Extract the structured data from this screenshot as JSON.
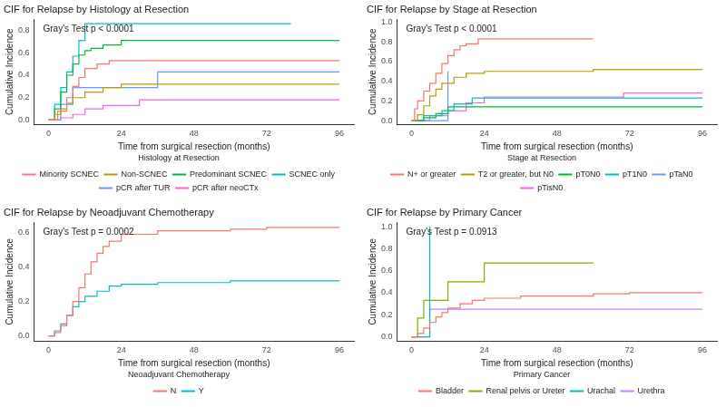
{
  "chart_data": [
    {
      "type": "line",
      "title": "CIF for Relapse by Histology at Resection",
      "annotation": "Gray's Test p < 0.0001",
      "x_label": "Time from surgical resection (months)",
      "y_label": "Cumulative Incidence",
      "legend_title": "Histology at Resection",
      "legend": "bottom",
      "grid": false,
      "line_style": "steps",
      "xlim": [
        -4.8,
        100.8
      ],
      "xticks": [
        0,
        24,
        48,
        72,
        96
      ],
      "ylim": [
        -0.04,
        0.9
      ],
      "yticks": [
        {
          "value": 0,
          "label": "0.0"
        },
        {
          "value": 0.2,
          "label": "0.2"
        },
        {
          "value": 0.4,
          "label": "0.4"
        },
        {
          "value": 0.6,
          "label": "0.6"
        },
        {
          "value": 0.8,
          "label": "0.8"
        }
      ],
      "series": [
        {
          "name": "Minority SCNEC",
          "color": "#F8766D",
          "x": [
            0,
            3,
            6,
            8,
            10,
            12,
            16,
            20,
            96
          ],
          "values": [
            0,
            0.08,
            0.2,
            0.3,
            0.38,
            0.46,
            0.5,
            0.53,
            0.53
          ]
        },
        {
          "name": "Non-SCNEC",
          "color": "#B79F00",
          "x": [
            0,
            2,
            4,
            6,
            8,
            12,
            18,
            24,
            96
          ],
          "values": [
            0,
            0.05,
            0.1,
            0.15,
            0.2,
            0.25,
            0.29,
            0.32,
            0.32
          ]
        },
        {
          "name": "Predominant SCNEC",
          "color": "#00BA38",
          "x": [
            0,
            2,
            4,
            6,
            8,
            10,
            12,
            14,
            18,
            24,
            96
          ],
          "values": [
            0,
            0.1,
            0.25,
            0.4,
            0.5,
            0.58,
            0.62,
            0.64,
            0.67,
            0.71,
            0.71
          ]
        },
        {
          "name": "SCNEC only",
          "color": "#00BFC4",
          "x": [
            0,
            2,
            4,
            6,
            8,
            10,
            12,
            80
          ],
          "values": [
            0,
            0.14,
            0.29,
            0.43,
            0.57,
            0.71,
            0.86,
            0.86
          ]
        },
        {
          "name": "pCR after TUR",
          "color": "#619CFF",
          "x": [
            0,
            4,
            8,
            36,
            96
          ],
          "values": [
            0,
            0.14,
            0.29,
            0.43,
            0.43
          ]
        },
        {
          "name": "pCR after neoCTx",
          "color": "#F564E3",
          "x": [
            0,
            4,
            8,
            12,
            18,
            30,
            96
          ],
          "values": [
            0,
            0.02,
            0.05,
            0.1,
            0.13,
            0.18,
            0.18
          ]
        }
      ]
    },
    {
      "type": "line",
      "title": "CIF for Relapse by Stage at Resection",
      "annotation": "Gray's Test p < 0.0001",
      "x_label": "Time from surgical resection (months)",
      "y_label": "Cumulative Incidence",
      "legend_title": "Stage at Resection",
      "legend": "bottom",
      "grid": false,
      "line_style": "steps",
      "xlim": [
        -4.8,
        100.8
      ],
      "xticks": [
        0,
        24,
        48,
        72,
        96
      ],
      "ylim": [
        -0.04,
        1.03
      ],
      "yticks": [
        {
          "value": 0,
          "label": "0.0"
        },
        {
          "value": 0.2,
          "label": "0.2"
        },
        {
          "value": 0.4,
          "label": "0.4"
        },
        {
          "value": 0.6,
          "label": "0.6"
        },
        {
          "value": 0.8,
          "label": "0.8"
        },
        {
          "value": 1,
          "label": "1.0"
        }
      ],
      "series": [
        {
          "name": "N+ or greater",
          "color": "#F8766D",
          "x": [
            0,
            1,
            2,
            4,
            6,
            8,
            10,
            12,
            14,
            16,
            18,
            22,
            60
          ],
          "values": [
            0,
            0.12,
            0.2,
            0.3,
            0.38,
            0.48,
            0.58,
            0.66,
            0.72,
            0.76,
            0.78,
            0.83,
            0.83
          ]
        },
        {
          "name": "T2 or greater, but N0",
          "color": "#B79F00",
          "x": [
            0,
            2,
            4,
            6,
            8,
            10,
            14,
            18,
            24,
            36,
            60,
            96
          ],
          "values": [
            0,
            0.06,
            0.15,
            0.25,
            0.32,
            0.38,
            0.44,
            0.48,
            0.5,
            0.5,
            0.52,
            0.52
          ]
        },
        {
          "name": "pT0N0",
          "color": "#00BA38",
          "x": [
            0,
            4,
            8,
            12,
            96
          ],
          "values": [
            0,
            0.03,
            0.07,
            0.14,
            0.14
          ]
        },
        {
          "name": "pT1N0",
          "color": "#00BFC4",
          "x": [
            0,
            4,
            10,
            14,
            20,
            96
          ],
          "values": [
            0,
            0.05,
            0.1,
            0.17,
            0.23,
            0.23
          ]
        },
        {
          "name": "pTaN0",
          "color": "#619CFF",
          "x": [
            0,
            6,
            12
          ],
          "values": [
            0,
            0,
            0.5
          ]
        },
        {
          "name": "pTisN0",
          "color": "#F564E3",
          "x": [
            0,
            6,
            12,
            18,
            24,
            70,
            96
          ],
          "values": [
            0,
            0.05,
            0.1,
            0.18,
            0.24,
            0.28,
            0.28
          ]
        }
      ]
    },
    {
      "type": "line",
      "title": "CIF for Relapse by Neoadjuvant Chemotherapy",
      "annotation": "Gray's Test p = 0.0002",
      "x_label": "Time from surgical resection (months)",
      "y_label": "Cumulative Incidence",
      "legend_title": "Neoadjuvant Chemotherapy",
      "legend": "bottom",
      "grid": false,
      "line_style": "steps",
      "xlim": [
        -4.8,
        100.8
      ],
      "xticks": [
        0,
        24,
        48,
        72,
        96
      ],
      "ylim": [
        -0.03,
        0.66
      ],
      "yticks": [
        {
          "value": 0,
          "label": "0.0"
        },
        {
          "value": 0.2,
          "label": "0.2"
        },
        {
          "value": 0.4,
          "label": "0.4"
        },
        {
          "value": 0.6,
          "label": "0.6"
        }
      ],
      "series": [
        {
          "name": "N",
          "color": "#F8766D",
          "x": [
            0,
            2,
            4,
            6,
            8,
            10,
            12,
            14,
            16,
            18,
            20,
            24,
            36,
            60,
            72,
            96
          ],
          "values": [
            0,
            0.02,
            0.06,
            0.12,
            0.2,
            0.28,
            0.36,
            0.43,
            0.48,
            0.52,
            0.55,
            0.59,
            0.61,
            0.62,
            0.63,
            0.63
          ]
        },
        {
          "name": "Y",
          "color": "#00BFC4",
          "x": [
            0,
            2,
            4,
            6,
            8,
            10,
            12,
            16,
            20,
            24,
            36,
            60,
            96
          ],
          "values": [
            0,
            0.03,
            0.07,
            0.12,
            0.17,
            0.2,
            0.23,
            0.26,
            0.29,
            0.3,
            0.31,
            0.32,
            0.32
          ]
        }
      ]
    },
    {
      "type": "line",
      "title": "CIF for Relapse by Primary Cancer",
      "annotation": "Gray's Test p = 0.0913",
      "x_label": "Time from surgical resection (months)",
      "y_label": "Cumulative Incidence",
      "legend_title": "Primary Cancer",
      "legend": "bottom",
      "grid": false,
      "line_style": "steps",
      "xlim": [
        -4.8,
        100.8
      ],
      "xticks": [
        0,
        24,
        48,
        72,
        96
      ],
      "ylim": [
        -0.04,
        1.04
      ],
      "yticks": [
        {
          "value": 0,
          "label": "0.0"
        },
        {
          "value": 0.2,
          "label": "0.2"
        },
        {
          "value": 0.4,
          "label": "0.4"
        },
        {
          "value": 0.6,
          "label": "0.6"
        },
        {
          "value": 0.8,
          "label": "0.8"
        },
        {
          "value": 1,
          "label": "1.0"
        }
      ],
      "series": [
        {
          "name": "Bladder",
          "color": "#F8766D",
          "x": [
            0,
            2,
            4,
            6,
            8,
            10,
            12,
            16,
            20,
            24,
            36,
            60,
            72,
            96
          ],
          "values": [
            0,
            0.03,
            0.08,
            0.13,
            0.18,
            0.22,
            0.26,
            0.3,
            0.33,
            0.35,
            0.37,
            0.39,
            0.4,
            0.4
          ]
        },
        {
          "name": "Renal pelvis or Ureter",
          "color": "#7CAE00",
          "x": [
            0,
            2,
            4,
            12,
            24,
            60
          ],
          "values": [
            0,
            0.17,
            0.33,
            0.5,
            0.67,
            0.67
          ]
        },
        {
          "name": "Urachal",
          "color": "#00BFC4",
          "x": [
            0,
            6
          ],
          "values": [
            0,
            1
          ]
        },
        {
          "name": "Urethra",
          "color": "#C77CFF",
          "x": [
            0,
            6,
            96
          ],
          "values": [
            0,
            0.25,
            0.25
          ]
        }
      ]
    }
  ]
}
